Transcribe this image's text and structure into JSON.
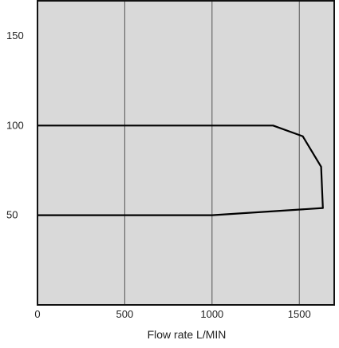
{
  "colors": {
    "plot_background": "#d9d9d9",
    "page_background": "#ffffff",
    "grid": "#555555",
    "frame": "#111111",
    "curve": "#000000"
  },
  "chart_data": {
    "type": "line",
    "title": "",
    "xlabel": "Flow rate L/MIN",
    "ylabel": "",
    "xlim": [
      0,
      1700
    ],
    "ylim": [
      0,
      170
    ],
    "x_ticks": [
      0,
      500,
      1000,
      1500
    ],
    "x_tick_labels": [
      "0",
      "500",
      "1000",
      "1500"
    ],
    "y_ticks": [
      50,
      100,
      150
    ],
    "y_tick_labels": [
      "50",
      "100",
      "150"
    ],
    "grid": {
      "vertical": true,
      "horizontal": false
    },
    "legend": "none",
    "series": [
      {
        "x": [
          0,
          1350,
          1520,
          1625,
          1635,
          1000,
          0
        ],
        "y": [
          100,
          100,
          94,
          77,
          54,
          50,
          50
        ]
      }
    ]
  }
}
